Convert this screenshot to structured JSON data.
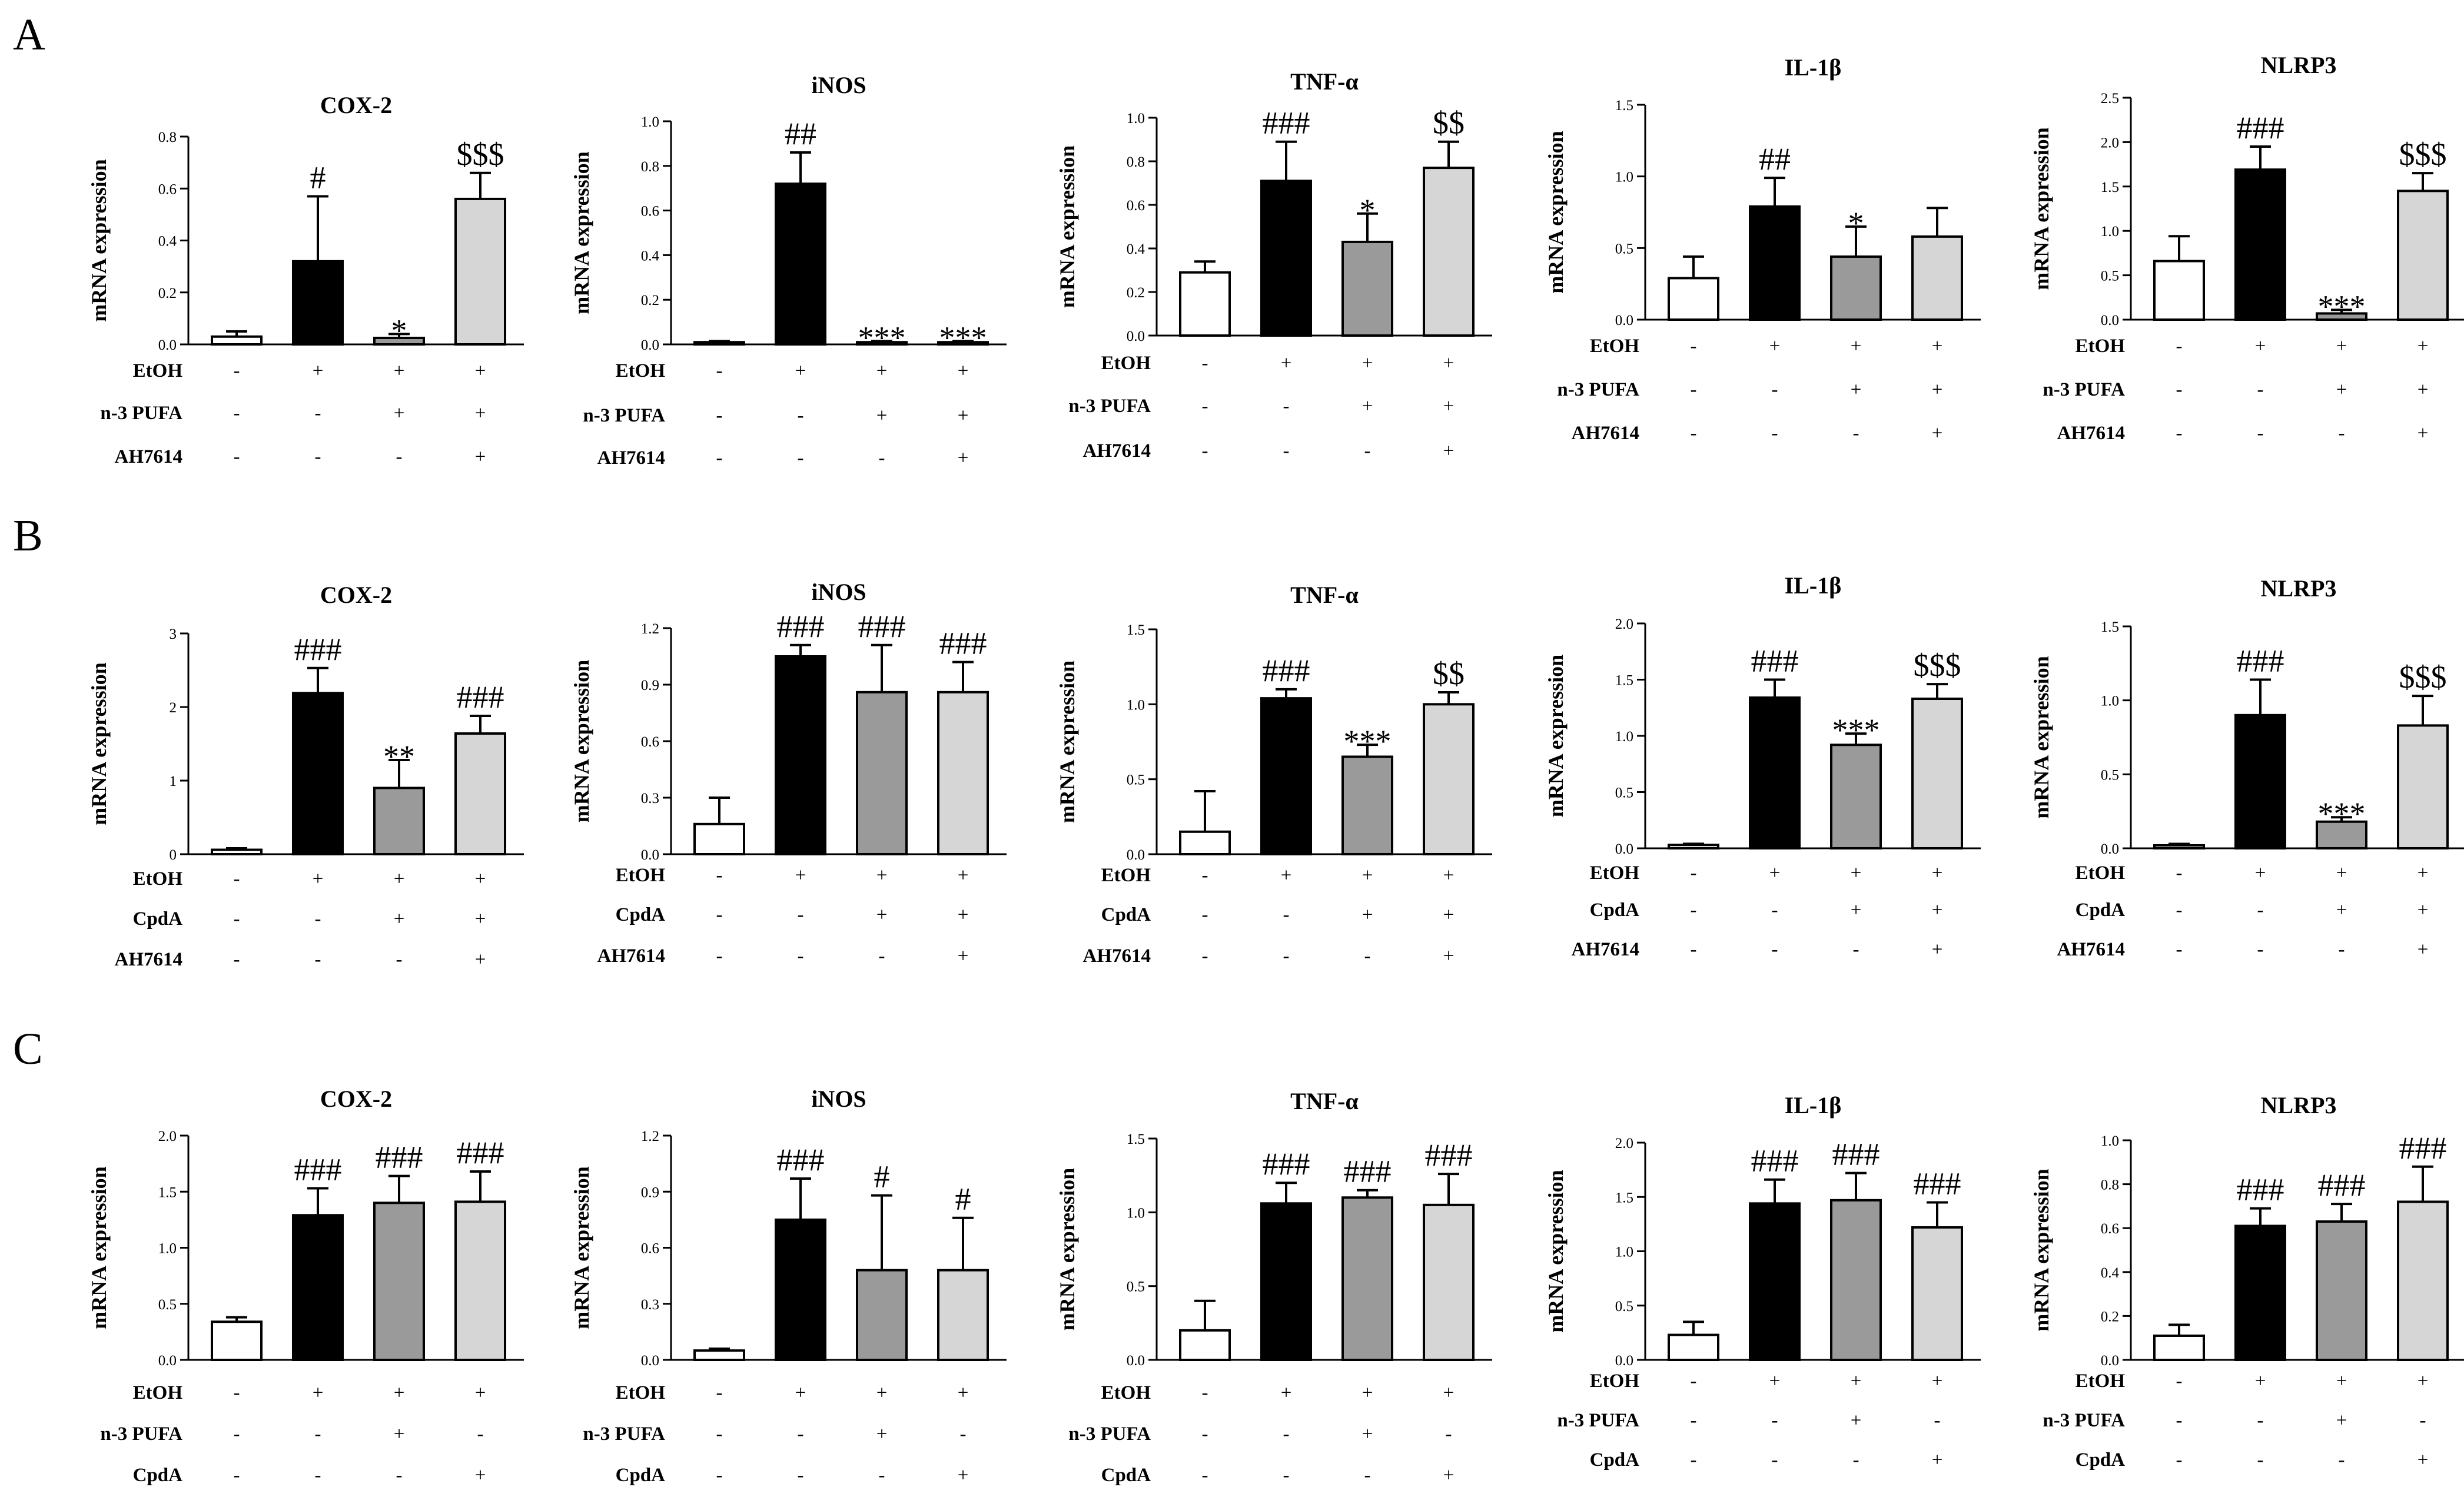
{
  "panels": [
    {
      "letter": "A",
      "treatments": [
        "EtOH",
        "n-3 PUFA",
        "AH7614"
      ],
      "signs": [
        [
          "-",
          "+",
          "+",
          "+"
        ],
        [
          "-",
          "-",
          "+",
          "+"
        ],
        [
          "-",
          "-",
          "-",
          "+"
        ]
      ]
    },
    {
      "letter": "B",
      "treatments": [
        "EtOH",
        "CpdA",
        "AH7614"
      ],
      "signs": [
        [
          "-",
          "+",
          "+",
          "+"
        ],
        [
          "-",
          "-",
          "+",
          "+"
        ],
        [
          "-",
          "-",
          "-",
          "+"
        ]
      ]
    },
    {
      "letter": "C",
      "treatments": [
        "EtOH",
        "n-3 PUFA",
        "CpdA"
      ],
      "signs": [
        [
          "-",
          "+",
          "+",
          "+"
        ],
        [
          "-",
          "-",
          "+",
          "-"
        ],
        [
          "-",
          "-",
          "-",
          "+"
        ]
      ]
    }
  ],
  "bar_colors": [
    "#ffffff",
    "#000000",
    "#9a9a9a",
    "#d6d6d6"
  ],
  "chart_data": [
    {
      "panel": "A",
      "type": "bar",
      "title": "COX-2",
      "ylabel": "mRNA expression",
      "ylim": [
        0,
        0.8
      ],
      "yticks": [
        "0.0",
        "0.2",
        "0.4",
        "0.6",
        "0.8"
      ],
      "values": [
        0.03,
        0.32,
        0.025,
        0.56
      ],
      "errors": [
        0.02,
        0.25,
        0.015,
        0.1
      ],
      "annotations": [
        "",
        "#",
        "*",
        "$$$"
      ]
    },
    {
      "panel": "A",
      "type": "bar",
      "title": "iNOS",
      "ylabel": "mRNA expression",
      "ylim": [
        0,
        1.0
      ],
      "yticks": [
        "0.0",
        "0.2",
        "0.4",
        "0.6",
        "0.8",
        "1.0"
      ],
      "values": [
        0.01,
        0.72,
        0.01,
        0.01
      ],
      "errors": [
        0.005,
        0.14,
        0.005,
        0.005
      ],
      "annotations": [
        "",
        "##",
        "***",
        "***"
      ]
    },
    {
      "panel": "A",
      "type": "bar",
      "title": "TNF-α",
      "ylabel": "mRNA expression",
      "ylim": [
        0,
        1.0
      ],
      "yticks": [
        "0.0",
        "0.2",
        "0.4",
        "0.6",
        "0.8",
        "1.0"
      ],
      "values": [
        0.29,
        0.71,
        0.43,
        0.77
      ],
      "errors": [
        0.05,
        0.18,
        0.13,
        0.12
      ],
      "annotations": [
        "",
        "###",
        "*",
        "$$"
      ]
    },
    {
      "panel": "A",
      "type": "bar",
      "title": "IL-1β",
      "ylabel": "mRNA expression",
      "ylim": [
        0,
        1.5
      ],
      "yticks": [
        "0.0",
        "0.5",
        "1.0",
        "1.5"
      ],
      "values": [
        0.29,
        0.79,
        0.44,
        0.58
      ],
      "errors": [
        0.15,
        0.2,
        0.21,
        0.2
      ],
      "annotations": [
        "",
        "##",
        "*",
        ""
      ]
    },
    {
      "panel": "A",
      "type": "bar",
      "title": "NLRP3",
      "ylabel": "mRNA expression",
      "ylim": [
        0,
        2.5
      ],
      "yticks": [
        "0.0",
        "0.5",
        "1.0",
        "1.5",
        "2.0",
        "2.5"
      ],
      "values": [
        0.66,
        1.69,
        0.07,
        1.45
      ],
      "errors": [
        0.28,
        0.26,
        0.04,
        0.2
      ],
      "annotations": [
        "",
        "###",
        "***",
        "$$$"
      ]
    },
    {
      "panel": "B",
      "type": "bar",
      "title": "COX-2",
      "ylabel": "mRNA expression",
      "ylim": [
        0,
        3
      ],
      "yticks": [
        "0",
        "1",
        "2",
        "3"
      ],
      "values": [
        0.06,
        2.19,
        0.9,
        1.64
      ],
      "errors": [
        0.02,
        0.34,
        0.38,
        0.24
      ],
      "annotations": [
        "",
        "###",
        "**",
        "###"
      ]
    },
    {
      "panel": "B",
      "type": "bar",
      "title": "iNOS",
      "ylabel": "mRNA expression",
      "ylim": [
        0,
        1.2
      ],
      "yticks": [
        "0.0",
        "0.3",
        "0.6",
        "0.9",
        "1.2"
      ],
      "values": [
        0.16,
        1.05,
        0.86,
        0.86
      ],
      "errors": [
        0.14,
        0.06,
        0.25,
        0.16
      ],
      "annotations": [
        "",
        "###",
        "###",
        "###"
      ]
    },
    {
      "panel": "B",
      "type": "bar",
      "title": "TNF-α",
      "ylabel": "mRNA expression",
      "ylim": [
        0,
        1.5
      ],
      "yticks": [
        "0.0",
        "0.5",
        "1.0",
        "1.5"
      ],
      "values": [
        0.15,
        1.04,
        0.65,
        1.0
      ],
      "errors": [
        0.27,
        0.06,
        0.08,
        0.08
      ],
      "annotations": [
        "",
        "###",
        "***",
        "$$"
      ]
    },
    {
      "panel": "B",
      "type": "bar",
      "title": "IL-1β",
      "ylabel": "mRNA expression",
      "ylim": [
        0,
        2.0
      ],
      "yticks": [
        "0.0",
        "0.5",
        "1.0",
        "1.5",
        "2.0"
      ],
      "values": [
        0.03,
        1.34,
        0.92,
        1.33
      ],
      "errors": [
        0.01,
        0.16,
        0.1,
        0.13
      ],
      "annotations": [
        "",
        "###",
        "***",
        "$$$"
      ]
    },
    {
      "panel": "B",
      "type": "bar",
      "title": "NLRP3",
      "ylabel": "mRNA expression",
      "ylim": [
        0,
        1.5
      ],
      "yticks": [
        "0.0",
        "0.5",
        "1.0",
        "1.5"
      ],
      "values": [
        0.02,
        0.9,
        0.18,
        0.83
      ],
      "errors": [
        0.01,
        0.24,
        0.03,
        0.2
      ],
      "annotations": [
        "",
        "###",
        "***",
        "$$$"
      ]
    },
    {
      "panel": "C",
      "type": "bar",
      "title": "COX-2",
      "ylabel": "mRNA expression",
      "ylim": [
        0,
        2.0
      ],
      "yticks": [
        "0.0",
        "0.5",
        "1.0",
        "1.5",
        "2.0"
      ],
      "values": [
        0.34,
        1.29,
        1.4,
        1.41
      ],
      "errors": [
        0.04,
        0.24,
        0.24,
        0.27
      ],
      "annotations": [
        "",
        "###",
        "###",
        "###"
      ]
    },
    {
      "panel": "C",
      "type": "bar",
      "title": "iNOS",
      "ylabel": "mRNA expression",
      "ylim": [
        0,
        1.2
      ],
      "yticks": [
        "0.0",
        "0.3",
        "0.6",
        "0.9",
        "1.2"
      ],
      "values": [
        0.05,
        0.75,
        0.48,
        0.48
      ],
      "errors": [
        0.01,
        0.22,
        0.4,
        0.28
      ],
      "annotations": [
        "",
        "###",
        "#",
        "#"
      ]
    },
    {
      "panel": "C",
      "type": "bar",
      "title": "TNF-α",
      "ylabel": "mRNA expression",
      "ylim": [
        0,
        1.5
      ],
      "yticks": [
        "0.0",
        "0.5",
        "1.0",
        "1.5"
      ],
      "values": [
        0.2,
        1.06,
        1.1,
        1.05
      ],
      "errors": [
        0.2,
        0.14,
        0.05,
        0.21
      ],
      "annotations": [
        "",
        "###",
        "###",
        "###"
      ]
    },
    {
      "panel": "C",
      "type": "bar",
      "title": "IL-1β",
      "ylabel": "mRNA expression",
      "ylim": [
        0,
        2.0
      ],
      "yticks": [
        "0.0",
        "0.5",
        "1.0",
        "1.5",
        "2.0"
      ],
      "values": [
        0.23,
        1.44,
        1.47,
        1.22
      ],
      "errors": [
        0.12,
        0.22,
        0.25,
        0.23
      ],
      "annotations": [
        "",
        "###",
        "###",
        "###"
      ]
    },
    {
      "panel": "C",
      "type": "bar",
      "title": "NLRP3",
      "ylabel": "mRNA expression",
      "ylim": [
        0,
        1.0
      ],
      "yticks": [
        "0.0",
        "0.2",
        "0.4",
        "0.6",
        "0.8",
        "1.0"
      ],
      "values": [
        0.11,
        0.61,
        0.63,
        0.72
      ],
      "errors": [
        0.05,
        0.08,
        0.08,
        0.16
      ],
      "annotations": [
        "",
        "###",
        "###",
        "###"
      ]
    }
  ]
}
